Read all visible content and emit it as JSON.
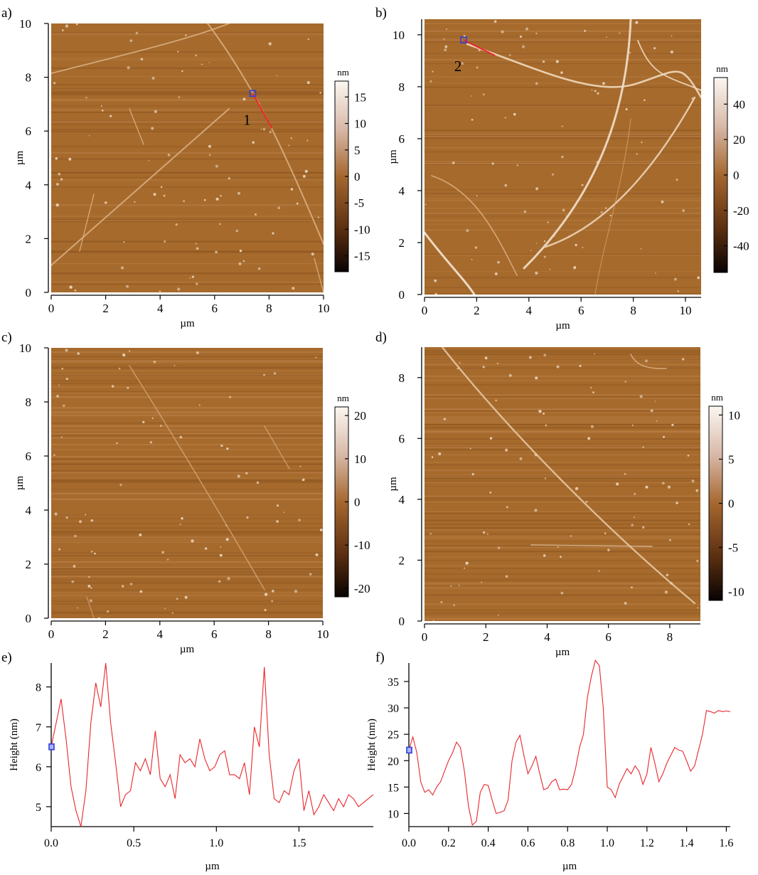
{
  "colors": {
    "profile": "#e8262b",
    "marker": "#2f3fd8",
    "scan_line": "#e8262b",
    "afm_dark": "#2a1405",
    "afm_mid": "#a66a2c",
    "afm_light": "#f0e4d4"
  },
  "panels": {
    "a": {
      "label": "a)",
      "xlabel": "µm",
      "ylabel": "µm",
      "cbar_unit": "nm",
      "xticks": [
        "0",
        "2",
        "4",
        "6",
        "8",
        "10"
      ],
      "yticks": [
        "0",
        "2",
        "4",
        "6",
        "8",
        "10"
      ],
      "xlim": [
        0,
        10
      ],
      "ylim": [
        0,
        10
      ],
      "cbar_ticks": [
        "15",
        "10",
        "5",
        "0",
        "-5",
        "-10",
        "-15"
      ],
      "cbar_range": [
        -18,
        18
      ],
      "profile_label": "1",
      "profile_line": {
        "from": [
          7.4,
          7.4
        ],
        "to": [
          8.1,
          6.1
        ]
      }
    },
    "b": {
      "label": "b)",
      "xlabel": "µm",
      "ylabel": "µm",
      "cbar_unit": "nm",
      "xticks": [
        "0",
        "2",
        "4",
        "6",
        "8",
        "10"
      ],
      "yticks": [
        "0",
        "2",
        "4",
        "6",
        "8",
        "10"
      ],
      "xlim": [
        0,
        10.6
      ],
      "ylim": [
        0,
        10.6
      ],
      "cbar_ticks": [
        "40",
        "20",
        "0",
        "-20",
        "-40"
      ],
      "cbar_range": [
        -55,
        55
      ],
      "profile_label": "2",
      "profile_line": {
        "from": [
          1.5,
          9.8
        ],
        "to": [
          2.7,
          9.2
        ]
      }
    },
    "c": {
      "label": "c)",
      "xlabel": "µm",
      "ylabel": "µm",
      "cbar_unit": "nm",
      "xticks": [
        "0",
        "2",
        "4",
        "6",
        "8",
        "10"
      ],
      "yticks": [
        "0",
        "2",
        "4",
        "6",
        "8",
        "10"
      ],
      "xlim": [
        0,
        10
      ],
      "ylim": [
        0,
        10
      ],
      "cbar_ticks": [
        "20",
        "10",
        "0",
        "-10",
        "-20"
      ],
      "cbar_range": [
        -22,
        22
      ]
    },
    "d": {
      "label": "d)",
      "xlabel": "µm",
      "ylabel": "µm",
      "cbar_unit": "nm",
      "xticks": [
        "0",
        "2",
        "4",
        "6",
        "8"
      ],
      "yticks": [
        "0",
        "2",
        "4",
        "6",
        "8"
      ],
      "xlim": [
        0,
        9
      ],
      "ylim": [
        0,
        9
      ],
      "cbar_ticks": [
        "10",
        "5",
        "0",
        "-5",
        "-10"
      ],
      "cbar_range": [
        -11,
        11
      ]
    }
  },
  "chart_data": [
    {
      "type": "line",
      "panel": "e)",
      "xlabel": "µm",
      "ylabel": "Height (nm)",
      "xlim": [
        0,
        1.95
      ],
      "ylim": [
        4.5,
        8.6
      ],
      "xticks": [
        "0.0",
        "0.5",
        "1.0",
        "1.5"
      ],
      "yticks": [
        "5",
        "6",
        "7",
        "8"
      ],
      "marker": [
        0.0,
        6.5
      ],
      "series": [
        {
          "x": [
            0.0,
            0.03,
            0.06,
            0.09,
            0.12,
            0.15,
            0.18,
            0.21,
            0.24,
            0.27,
            0.3,
            0.33,
            0.36,
            0.39,
            0.42,
            0.45,
            0.48,
            0.51,
            0.54,
            0.57,
            0.6,
            0.63,
            0.66,
            0.69,
            0.72,
            0.75,
            0.78,
            0.81,
            0.84,
            0.87,
            0.9,
            0.93,
            0.96,
            0.99,
            1.02,
            1.05,
            1.08,
            1.11,
            1.14,
            1.17,
            1.2,
            1.23,
            1.26,
            1.29,
            1.32,
            1.35,
            1.38,
            1.41,
            1.44,
            1.47,
            1.5,
            1.53,
            1.56,
            1.59,
            1.62,
            1.65,
            1.68,
            1.71,
            1.74,
            1.77,
            1.8,
            1.83,
            1.86,
            1.89,
            1.92,
            1.95
          ],
          "y": [
            6.5,
            7.1,
            7.7,
            6.7,
            5.5,
            4.9,
            4.5,
            5.4,
            7.1,
            8.1,
            7.5,
            8.6,
            7.1,
            6.1,
            5.0,
            5.3,
            5.4,
            6.1,
            5.9,
            6.2,
            5.8,
            6.9,
            5.7,
            5.5,
            5.8,
            5.2,
            6.3,
            6.1,
            6.2,
            6.0,
            6.7,
            6.2,
            5.9,
            6.0,
            6.3,
            6.4,
            5.8,
            5.8,
            5.7,
            6.1,
            5.3,
            7.0,
            6.5,
            8.5,
            6.3,
            5.2,
            5.1,
            5.4,
            5.3,
            5.9,
            6.2,
            4.9,
            5.4,
            4.8,
            5.0,
            5.3,
            5.1,
            4.9,
            5.2,
            5.0,
            5.3,
            5.2,
            5.0,
            5.1,
            5.2,
            5.3
          ]
        }
      ]
    },
    {
      "type": "line",
      "panel": "f)",
      "xlabel": "µm",
      "ylabel": "Height (nm)",
      "xlim": [
        0,
        1.62
      ],
      "ylim": [
        7.5,
        38.5
      ],
      "xticks": [
        "0.0",
        "0.2",
        "0.4",
        "0.6",
        "0.8",
        "1.0",
        "1.2",
        "1.4",
        "1.6"
      ],
      "yticks": [
        "10",
        "15",
        "20",
        "25",
        "30",
        "35"
      ],
      "marker": [
        0.0,
        22.0
      ],
      "series": [
        {
          "x": [
            0.0,
            0.02,
            0.04,
            0.06,
            0.08,
            0.1,
            0.12,
            0.14,
            0.16,
            0.18,
            0.2,
            0.22,
            0.24,
            0.26,
            0.28,
            0.3,
            0.32,
            0.34,
            0.36,
            0.38,
            0.4,
            0.42,
            0.44,
            0.46,
            0.48,
            0.5,
            0.52,
            0.54,
            0.56,
            0.58,
            0.6,
            0.62,
            0.64,
            0.66,
            0.68,
            0.7,
            0.72,
            0.74,
            0.76,
            0.78,
            0.8,
            0.82,
            0.84,
            0.86,
            0.88,
            0.9,
            0.92,
            0.94,
            0.96,
            0.98,
            1.0,
            1.02,
            1.04,
            1.06,
            1.08,
            1.1,
            1.12,
            1.14,
            1.16,
            1.18,
            1.2,
            1.22,
            1.24,
            1.26,
            1.28,
            1.3,
            1.32,
            1.34,
            1.36,
            1.38,
            1.4,
            1.42,
            1.44,
            1.46,
            1.48,
            1.5,
            1.52,
            1.54,
            1.56,
            1.58,
            1.6,
            1.62
          ],
          "y": [
            22.0,
            24.5,
            21.5,
            16.0,
            14.0,
            14.5,
            13.5,
            15.0,
            16.0,
            18.0,
            20.0,
            21.5,
            23.5,
            22.5,
            18.0,
            11.5,
            7.8,
            8.5,
            14.0,
            15.5,
            15.3,
            12.5,
            10.0,
            10.2,
            10.5,
            12.5,
            20.0,
            23.5,
            24.8,
            21.0,
            17.5,
            19.0,
            20.8,
            17.5,
            14.5,
            14.8,
            16.0,
            16.5,
            14.5,
            14.6,
            14.5,
            15.5,
            18.5,
            22.5,
            25.0,
            32.0,
            36.0,
            39.0,
            38.0,
            30.0,
            15.0,
            14.5,
            13.0,
            15.5,
            17.0,
            18.5,
            17.5,
            19.0,
            18.0,
            15.5,
            17.5,
            22.5,
            19.5,
            16.0,
            17.5,
            19.5,
            21.0,
            22.5,
            22.0,
            21.8,
            20.0,
            18.0,
            19.0,
            22.0,
            25.0,
            29.5,
            29.3,
            29.0,
            29.5,
            29.3,
            29.4,
            29.3
          ]
        }
      ]
    }
  ]
}
